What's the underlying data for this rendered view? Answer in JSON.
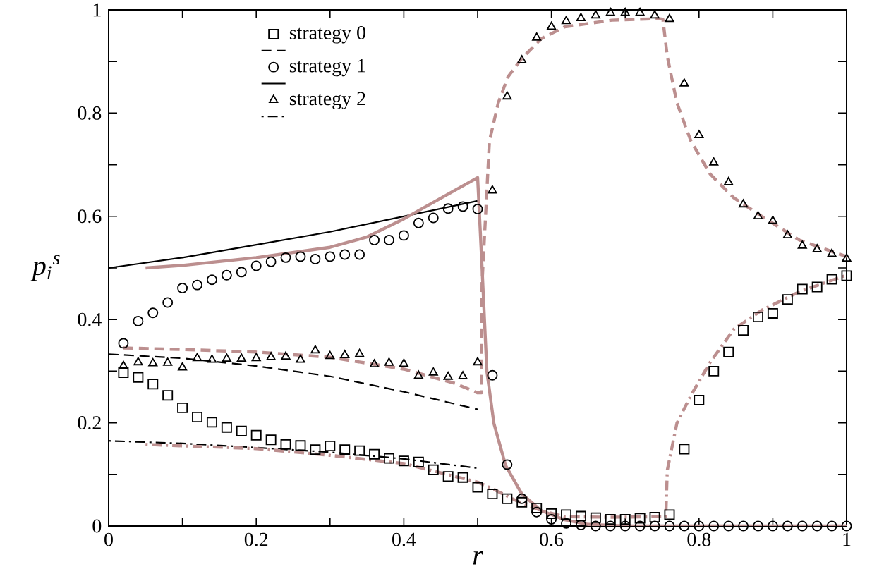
{
  "chart_data": {
    "type": "scatter",
    "xlabel": "r",
    "ylabel": "p$_{i}$$^{s}$",
    "xlim": [
      0,
      1
    ],
    "ylim": [
      0,
      1
    ],
    "xticks": [
      0,
      {
        "value": 0.1,
        "label": null
      },
      0.2,
      {
        "value": 0.3,
        "label": null
      },
      0.4,
      {
        "value": 0.5,
        "label": null
      },
      0.6,
      {
        "value": 0.7,
        "label": null
      },
      0.8,
      {
        "value": 0.9,
        "label": null
      },
      1
    ],
    "yticks": [
      0,
      {
        "value": 0.1,
        "label": null
      },
      0.2,
      {
        "value": 0.3,
        "label": null
      },
      0.4,
      {
        "value": 0.5,
        "label": null
      },
      0.6,
      {
        "value": 0.7,
        "label": null
      },
      0.8,
      {
        "value": 0.9,
        "label": null
      },
      1
    ],
    "legend": "top left",
    "series": [
      {
        "name": "strategy 0",
        "marker": "square",
        "color": "#000000",
        "x": [
          0.02,
          0.04,
          0.06,
          0.08,
          0.1,
          0.12,
          0.14,
          0.16,
          0.18,
          0.2,
          0.22,
          0.24,
          0.26,
          0.28,
          0.3,
          0.32,
          0.34,
          0.36,
          0.38,
          0.4,
          0.42,
          0.44,
          0.46,
          0.48,
          0.5,
          0.52,
          0.54,
          0.56,
          0.58,
          0.6,
          0.62,
          0.64,
          0.66,
          0.68,
          0.7,
          0.72,
          0.74,
          0.76,
          0.78,
          0.8,
          0.82,
          0.84,
          0.86,
          0.88,
          0.9,
          0.92,
          0.94,
          0.96,
          0.98,
          1.0
        ],
        "values": [
          0.297,
          0.288,
          0.275,
          0.253,
          0.229,
          0.211,
          0.201,
          0.191,
          0.184,
          0.176,
          0.167,
          0.158,
          0.156,
          0.148,
          0.155,
          0.148,
          0.146,
          0.139,
          0.131,
          0.126,
          0.124,
          0.109,
          0.096,
          0.094,
          0.075,
          0.062,
          0.053,
          0.046,
          0.035,
          0.024,
          0.022,
          0.019,
          0.016,
          0.013,
          0.013,
          0.015,
          0.017,
          0.022,
          0.149,
          0.244,
          0.3,
          0.337,
          0.379,
          0.405,
          0.412,
          0.439,
          0.459,
          0.463,
          0.478,
          0.485
        ]
      },
      {
        "type": "line",
        "line_style": "dashed",
        "color": "#000000",
        "x": [
          0,
          0.1,
          0.2,
          0.3,
          0.4,
          0.5
        ],
        "values": [
          0.333,
          0.325,
          0.31,
          0.29,
          0.26,
          0.226
        ]
      },
      {
        "name": "strategy 1",
        "marker": "circle",
        "color": "#000000",
        "x": [
          0.02,
          0.04,
          0.06,
          0.08,
          0.1,
          0.12,
          0.14,
          0.16,
          0.18,
          0.2,
          0.22,
          0.24,
          0.26,
          0.28,
          0.3,
          0.32,
          0.34,
          0.36,
          0.38,
          0.4,
          0.42,
          0.44,
          0.46,
          0.48,
          0.5,
          0.52,
          0.54,
          0.56,
          0.58,
          0.6,
          0.62,
          0.64,
          0.66,
          0.68,
          0.7,
          0.72,
          0.74,
          0.76,
          0.78,
          0.8,
          0.82,
          0.84,
          0.86,
          0.88,
          0.9,
          0.92,
          0.94,
          0.96,
          0.98,
          1.0
        ],
        "values": [
          0.354,
          0.397,
          0.413,
          0.433,
          0.461,
          0.467,
          0.477,
          0.486,
          0.492,
          0.504,
          0.512,
          0.52,
          0.522,
          0.517,
          0.522,
          0.526,
          0.526,
          0.554,
          0.554,
          0.563,
          0.587,
          0.597,
          0.615,
          0.619,
          0.614,
          0.292,
          0.119,
          0.053,
          0.027,
          0.013,
          0.005,
          0.002,
          0,
          0,
          0,
          0,
          0,
          0,
          0,
          0,
          0,
          0,
          0,
          0,
          0,
          0,
          0,
          0,
          0,
          0
        ]
      },
      {
        "type": "line",
        "line_style": "solid",
        "color": "#000000",
        "x": [
          0,
          0.1,
          0.2,
          0.3,
          0.4,
          0.5
        ],
        "values": [
          0.5,
          0.52,
          0.545,
          0.57,
          0.6,
          0.63
        ]
      },
      {
        "name": "strategy 2",
        "marker": "triangle",
        "color": "#000000",
        "x": [
          0.02,
          0.04,
          0.06,
          0.08,
          0.1,
          0.12,
          0.14,
          0.16,
          0.18,
          0.2,
          0.22,
          0.24,
          0.26,
          0.28,
          0.3,
          0.32,
          0.34,
          0.36,
          0.38,
          0.4,
          0.42,
          0.44,
          0.46,
          0.48,
          0.5,
          0.52,
          0.54,
          0.56,
          0.58,
          0.6,
          0.62,
          0.64,
          0.66,
          0.68,
          0.7,
          0.72,
          0.74,
          0.76,
          0.78,
          0.8,
          0.82,
          0.84,
          0.86,
          0.88,
          0.9,
          0.92,
          0.94,
          0.96,
          0.98,
          1.0
        ],
        "values": [
          0.31,
          0.317,
          0.315,
          0.316,
          0.307,
          0.325,
          0.322,
          0.324,
          0.324,
          0.325,
          0.327,
          0.328,
          0.322,
          0.34,
          0.329,
          0.331,
          0.333,
          0.313,
          0.316,
          0.314,
          0.291,
          0.297,
          0.289,
          0.29,
          0.317,
          0.65,
          0.832,
          0.902,
          0.946,
          0.967,
          0.978,
          0.984,
          0.989,
          0.994,
          0.994,
          0.994,
          0.989,
          0.982,
          0.857,
          0.757,
          0.704,
          0.666,
          0.623,
          0.6,
          0.591,
          0.563,
          0.543,
          0.536,
          0.527,
          0.518
        ]
      },
      {
        "type": "line",
        "line_style": "dashdot",
        "color": "#000000",
        "x": [
          0,
          0.1,
          0.2,
          0.3,
          0.4,
          0.5
        ],
        "values": [
          0.165,
          0.16,
          0.152,
          0.143,
          0.13,
          0.112
        ]
      },
      {
        "type": "line",
        "line_style": "solid",
        "color": "#bc8f8f",
        "x": [
          0.05,
          0.1,
          0.2,
          0.3,
          0.35,
          0.4,
          0.45,
          0.5,
          0.506,
          0.5125,
          0.522,
          0.538,
          0.56,
          0.586,
          0.618,
          0.65,
          0.7,
          0.8,
          0.9,
          1.0
        ],
        "values": [
          0.5,
          0.505,
          0.52,
          0.54,
          0.56,
          0.595,
          0.635,
          0.675,
          0.5,
          0.3,
          0.199,
          0.117,
          0.062,
          0.03,
          0.012,
          0.003,
          0,
          0,
          0,
          0
        ]
      },
      {
        "type": "line",
        "line_style": "dashed",
        "color": "#bc8f8f",
        "x": [
          0.02,
          0.1,
          0.2,
          0.3,
          0.4,
          0.47,
          0.5,
          0.505,
          0.506,
          0.516,
          0.528,
          0.541,
          0.56,
          0.586,
          0.618,
          0.682,
          0.745,
          0.751,
          0.757,
          0.77,
          0.789,
          0.815,
          0.847,
          0.885,
          0.936,
          1.0
        ],
        "values": [
          0.345,
          0.342,
          0.337,
          0.327,
          0.304,
          0.276,
          0.258,
          0.258,
          0.47,
          0.746,
          0.82,
          0.87,
          0.906,
          0.944,
          0.967,
          0.98,
          0.983,
          0.982,
          0.91,
          0.82,
          0.746,
          0.682,
          0.636,
          0.6,
          0.554,
          0.522
        ]
      },
      {
        "type": "line",
        "line_style": "dashdot",
        "color": "#bc8f8f",
        "x": [
          0.05,
          0.2,
          0.3,
          0.4,
          0.5,
          0.522,
          0.554,
          0.586,
          0.618,
          0.682,
          0.745,
          0.755,
          0.757,
          0.77,
          0.789,
          0.815,
          0.847,
          0.885,
          0.936,
          1.0
        ],
        "values": [
          0.158,
          0.15,
          0.137,
          0.121,
          0.085,
          0.071,
          0.048,
          0.03,
          0.018,
          0.017,
          0.018,
          0.018,
          0.108,
          0.199,
          0.253,
          0.317,
          0.381,
          0.418,
          0.454,
          0.486
        ]
      }
    ]
  }
}
